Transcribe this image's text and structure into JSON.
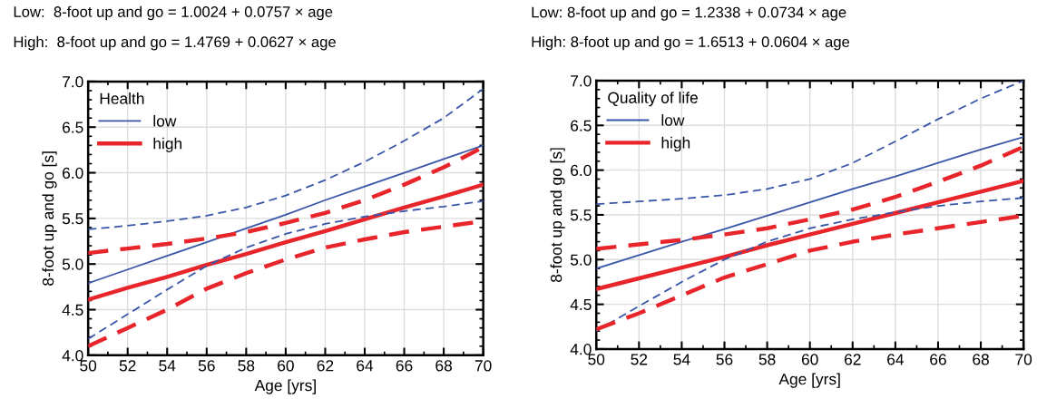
{
  "chart_data": [
    {
      "type": "line",
      "title": "Low:  8-foot up and go = 1.0024 + 0.0757 × age",
      "subtitle": "High:  8-foot up and go = 1.4769 + 0.0627 × age",
      "xlabel": "Age [yrs]",
      "ylabel": "8-foot up and go [s]",
      "legend_title": "Health",
      "x": [
        50,
        52,
        54,
        56,
        58,
        60,
        62,
        64,
        66,
        68,
        70
      ],
      "series": [
        {
          "name": "low",
          "color": "#3a56a8",
          "line_style": "solid",
          "values": [
            4.79,
            4.94,
            5.09,
            5.24,
            5.39,
            5.54,
            5.7,
            5.85,
            6.0,
            6.15,
            6.3
          ]
        },
        {
          "name": "high",
          "color": "#e8252a",
          "line_style": "solid",
          "values": [
            4.61,
            4.74,
            4.86,
            4.99,
            5.11,
            5.24,
            5.36,
            5.49,
            5.62,
            5.74,
            5.87
          ]
        },
        {
          "color": "#3a56a8",
          "line_style": "dashed",
          "values": [
            5.38,
            5.42,
            5.47,
            5.53,
            5.62,
            5.75,
            5.92,
            6.12,
            6.35,
            6.6,
            6.92
          ]
        },
        {
          "color": "#e8252a",
          "line_style": "dashed",
          "values": [
            5.12,
            5.17,
            5.22,
            5.28,
            5.35,
            5.45,
            5.56,
            5.7,
            5.87,
            6.06,
            6.28
          ]
        },
        {
          "color": "#3a56a8",
          "line_style": "dashed",
          "values": [
            4.18,
            4.45,
            4.72,
            4.98,
            5.18,
            5.33,
            5.44,
            5.52,
            5.58,
            5.63,
            5.69
          ]
        },
        {
          "color": "#e8252a",
          "line_style": "dashed",
          "values": [
            4.1,
            4.3,
            4.5,
            4.73,
            4.9,
            5.05,
            5.18,
            5.27,
            5.35,
            5.41,
            5.47
          ]
        }
      ],
      "xlim": [
        50,
        70
      ],
      "xticks": [
        50,
        52,
        54,
        56,
        58,
        60,
        62,
        64,
        66,
        68,
        70
      ],
      "ylim": [
        4.0,
        7.0
      ],
      "yticks": [
        {
          "value": 4.0,
          "label": "4.0"
        },
        {
          "value": 4.5,
          "label": "4.5"
        },
        {
          "value": 5.0,
          "label": "5.0"
        },
        {
          "value": 5.5,
          "label": "5.5"
        },
        {
          "value": 6.0,
          "label": "6.0"
        },
        {
          "value": 6.5,
          "label": "6.5"
        },
        {
          "value": 7.0,
          "label": "7.0"
        }
      ],
      "grid": true,
      "legend": "top left",
      "marker": "none"
    },
    {
      "type": "line",
      "title": "Low: 8-foot up and go = 1.2338 + 0.0734 × age",
      "subtitle": "High: 8-foot up and go = 1.6513 + 0.0604 × age",
      "xlabel": "Age [yrs]",
      "ylabel": "8-foot up and go [s]",
      "legend_title": "Quality of life",
      "x": [
        50,
        52,
        54,
        56,
        58,
        60,
        62,
        64,
        66,
        68,
        70
      ],
      "series": [
        {
          "name": "low",
          "color": "#3a56a8",
          "line_style": "solid",
          "values": [
            4.9,
            5.05,
            5.2,
            5.34,
            5.49,
            5.64,
            5.79,
            5.93,
            6.08,
            6.23,
            6.37
          ]
        },
        {
          "name": "high",
          "color": "#e8252a",
          "line_style": "solid",
          "values": [
            4.67,
            4.79,
            4.91,
            5.03,
            5.16,
            5.28,
            5.4,
            5.52,
            5.64,
            5.76,
            5.88
          ]
        },
        {
          "color": "#3a56a8",
          "line_style": "dashed",
          "values": [
            5.62,
            5.65,
            5.68,
            5.72,
            5.79,
            5.9,
            6.08,
            6.32,
            6.57,
            6.8,
            7.0
          ]
        },
        {
          "color": "#e8252a",
          "line_style": "dashed",
          "values": [
            5.12,
            5.17,
            5.22,
            5.28,
            5.35,
            5.45,
            5.56,
            5.7,
            5.87,
            6.05,
            6.26
          ]
        },
        {
          "color": "#3a56a8",
          "line_style": "dashed",
          "values": [
            4.2,
            4.48,
            4.75,
            5.0,
            5.2,
            5.35,
            5.45,
            5.53,
            5.6,
            5.65,
            5.69
          ]
        },
        {
          "color": "#e8252a",
          "line_style": "dashed",
          "values": [
            4.22,
            4.4,
            4.6,
            4.8,
            4.95,
            5.1,
            5.2,
            5.28,
            5.35,
            5.42,
            5.49
          ]
        }
      ],
      "xlim": [
        50,
        70
      ],
      "xticks": [
        50,
        52,
        54,
        56,
        58,
        60,
        62,
        64,
        66,
        68,
        70
      ],
      "ylim": [
        4.0,
        7.0
      ],
      "yticks": [
        {
          "value": 4.0,
          "label": "4.0"
        },
        {
          "value": 4.5,
          "label": "4.5"
        },
        {
          "value": 5.0,
          "label": "5.0"
        },
        {
          "value": 5.5,
          "label": "5.5"
        },
        {
          "value": 6.0,
          "label": "6.0"
        },
        {
          "value": 6.5,
          "label": "6.5"
        },
        {
          "value": 7.0,
          "label": "7.0"
        }
      ],
      "grid": true,
      "legend": "top left",
      "marker": "none"
    }
  ]
}
